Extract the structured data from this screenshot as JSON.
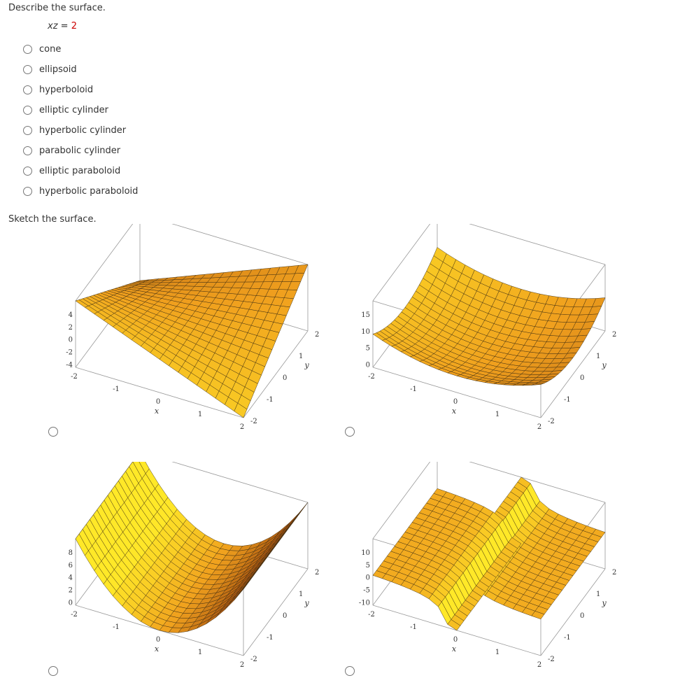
{
  "question": {
    "title": "Describe the surface.",
    "equation_lhs": "xz",
    "equation_eq": " = ",
    "equation_rhs": "2"
  },
  "options": [
    "cone",
    "ellipsoid",
    "hyperboloid",
    "elliptic cylinder",
    "hyperbolic cylinder",
    "parabolic cylinder",
    "elliptic paraboloid",
    "hyperbolic paraboloid"
  ],
  "sketch": {
    "title": "Sketch the surface."
  },
  "plots": [
    {
      "z_ticks": [
        "4",
        "2",
        "0",
        "-2",
        "-4"
      ],
      "x_ticks": [
        "-2",
        "-1",
        "0",
        "1",
        "2"
      ],
      "y_ticks": [
        "-2",
        "-1",
        "0",
        "1",
        "2"
      ],
      "x_label": "x",
      "y_label": "y"
    },
    {
      "z_ticks": [
        "15",
        "10",
        "5",
        "0"
      ],
      "x_ticks": [
        "-2",
        "-1",
        "0",
        "1",
        "2"
      ],
      "y_ticks": [
        "-2",
        "-1",
        "0",
        "1",
        "2"
      ],
      "x_label": "x",
      "y_label": "y"
    },
    {
      "z_ticks": [
        "8",
        "6",
        "4",
        "2",
        "0"
      ],
      "x_ticks": [
        "-2",
        "-1",
        "0",
        "1",
        "2"
      ],
      "y_ticks": [
        "-2",
        "-1",
        "0",
        "1",
        "2"
      ],
      "x_label": "x",
      "y_label": "y"
    },
    {
      "z_ticks": [
        "10",
        "5",
        "0",
        "-5",
        "-10"
      ],
      "x_ticks": [
        "-2",
        "-1",
        "0",
        "1",
        "2"
      ],
      "y_ticks": [
        "-2",
        "-1",
        "0",
        "1",
        "2"
      ],
      "x_label": "x",
      "y_label": "y"
    }
  ],
  "colors": {
    "surface_light": "#ffd21f",
    "surface_dark": "#e88a17",
    "equation_value": "#cc0000"
  }
}
